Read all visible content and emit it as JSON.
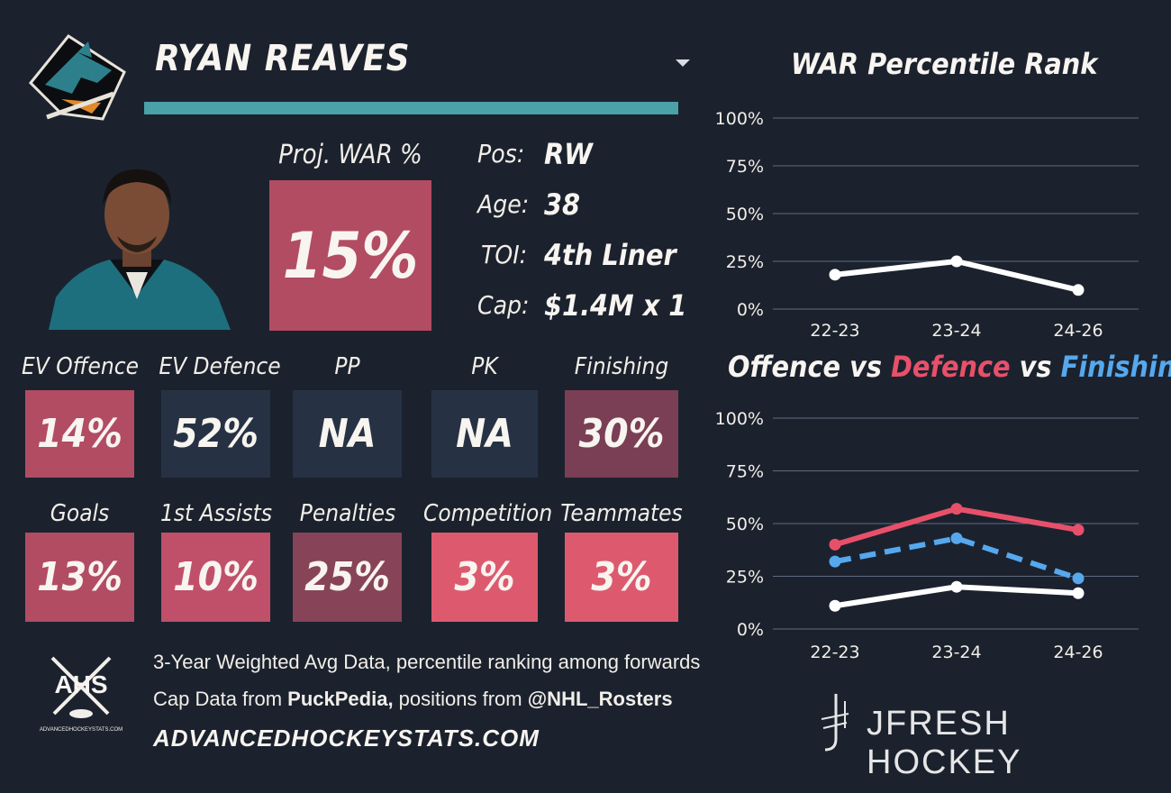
{
  "header": {
    "player_name": "RYAN REAVES"
  },
  "proj_war": {
    "label": "Proj. WAR %",
    "value": "15%"
  },
  "info": [
    {
      "key": "Pos:",
      "value": "RW"
    },
    {
      "key": "Age:",
      "value": "38"
    },
    {
      "key": "TOI:",
      "value": "4th Liner"
    },
    {
      "key": "Cap:",
      "value": "$1.4M x 1"
    }
  ],
  "metrics_row1": [
    {
      "label": "EV Offence",
      "value": "14%",
      "color": "#b24c63"
    },
    {
      "label": "EV Defence",
      "value": "52%",
      "color": "#263244"
    },
    {
      "label": "PP",
      "value": "NA",
      "color": "#263244"
    },
    {
      "label": "PK",
      "value": "NA",
      "color": "#263244"
    },
    {
      "label": "Finishing",
      "value": "30%",
      "color": "#7a3f54"
    }
  ],
  "metrics_row2": [
    {
      "label": "Goals",
      "value": "13%",
      "color": "#b24c63"
    },
    {
      "label": "1st Assists",
      "value": "10%",
      "color": "#c0506a"
    },
    {
      "label": "Penalties",
      "value": "25%",
      "color": "#874459"
    },
    {
      "label": "Competition",
      "value": "3%",
      "color": "#dd5a6e"
    },
    {
      "label": "Teammates",
      "value": "3%",
      "color": "#dd5a6e"
    }
  ],
  "footer": {
    "line1": "3-Year Weighted Avg Data, percentile ranking among forwards",
    "line2_pre": "Cap Data from ",
    "line2_src1": "PuckPedia,",
    "line2_mid": " positions from ",
    "line2_src2": "@NHL_Rosters",
    "site": "ADVANCEDHOCKEYSTATS.COM",
    "ahs_logo_text": "AHS",
    "ahs_logo_sub": "ADVANCEDHOCKEYSTATS.COM",
    "brand": "JFRESH HOCKEY"
  },
  "chart_data": [
    {
      "type": "line",
      "title": "WAR Percentile Rank",
      "categories": [
        "22-23",
        "23-24",
        "24-26"
      ],
      "y_ticks": [
        "100%",
        "75%",
        "50%",
        "25%",
        "0%"
      ],
      "ylim": [
        0,
        100
      ],
      "grid": true,
      "series": [
        {
          "values": [
            18,
            25,
            10
          ],
          "color": "#ffffff",
          "dash": false
        }
      ]
    },
    {
      "type": "line",
      "title_parts": [
        {
          "text": "Offence",
          "color": "#f8f4f0"
        },
        {
          "text": " vs ",
          "color": "#f8f4f0"
        },
        {
          "text": "Defence",
          "color": "#e8506a"
        },
        {
          "text": " vs ",
          "color": "#f8f4f0"
        },
        {
          "text": "Finishing",
          "color": "#56a8ee"
        }
      ],
      "categories": [
        "22-23",
        "23-24",
        "24-26"
      ],
      "y_ticks": [
        "100%",
        "75%",
        "50%",
        "25%",
        "0%"
      ],
      "ylim": [
        0,
        100
      ],
      "grid": true,
      "series": [
        {
          "name": "Defence",
          "values": [
            40,
            57,
            47
          ],
          "color": "#e8506a",
          "dash": false
        },
        {
          "name": "Finishing",
          "values": [
            32,
            43,
            24
          ],
          "color": "#56a8ee",
          "dash": true
        },
        {
          "name": "Offence",
          "values": [
            11,
            20,
            17
          ],
          "color": "#ffffff",
          "dash": false
        }
      ]
    }
  ]
}
